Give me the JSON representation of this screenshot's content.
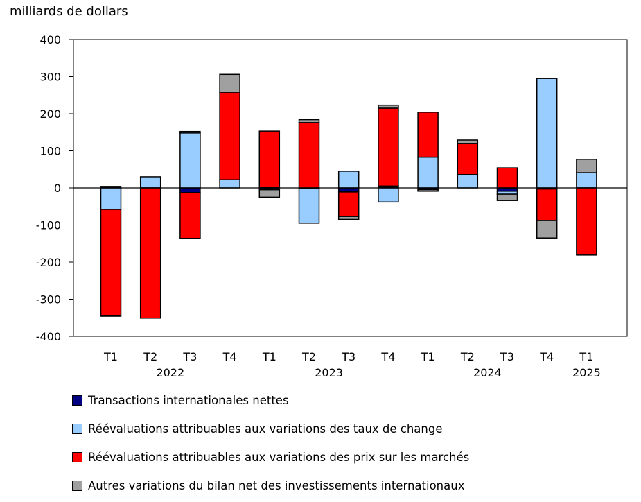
{
  "chart_data": {
    "type": "bar",
    "stacked": true,
    "ylabel": "milliards de dollars",
    "ylim": [
      -400,
      400
    ],
    "yticks": [
      400,
      300,
      200,
      100,
      0,
      -100,
      -200,
      -300,
      -400
    ],
    "grid": false,
    "legend_position": "bottom",
    "categories": [
      "T1",
      "T2",
      "T3",
      "T4",
      "T1",
      "T2",
      "T3",
      "T4",
      "T1",
      "T2",
      "T3",
      "T4",
      "T1"
    ],
    "years": [
      {
        "label": "2022",
        "span": [
          0,
          3
        ]
      },
      {
        "label": "2023",
        "span": [
          4,
          7
        ]
      },
      {
        "label": "2024",
        "span": [
          8,
          11
        ]
      },
      {
        "label": "2025",
        "span": [
          12,
          12
        ]
      }
    ],
    "series": [
      {
        "name": "Transactions internationales nettes",
        "color": "#000080",
        "values": [
          4,
          0,
          -13,
          0,
          -5,
          -2,
          -11,
          5,
          -5,
          0,
          -9,
          -3,
          0
        ]
      },
      {
        "name": "Réévaluations attribuables aux variations des taux de change",
        "color": "#99ccff",
        "values": [
          -58,
          30,
          148,
          22,
          2,
          -93,
          45,
          -38,
          83,
          36,
          -8,
          295,
          41
        ]
      },
      {
        "name": "Réévaluations attribuables aux variations des prix sur les marchés",
        "color": "#ff0000",
        "values": [
          -286,
          -351,
          -123,
          236,
          151,
          176,
          -66,
          210,
          121,
          84,
          54,
          -85,
          -181
        ]
      },
      {
        "name": "Autres variations du bilan net des investissements internationaux",
        "color": "#a0a0a0",
        "values": [
          -1,
          0,
          4,
          48,
          -20,
          8,
          -8,
          8,
          -4,
          9,
          -17,
          -47,
          36
        ]
      }
    ]
  }
}
